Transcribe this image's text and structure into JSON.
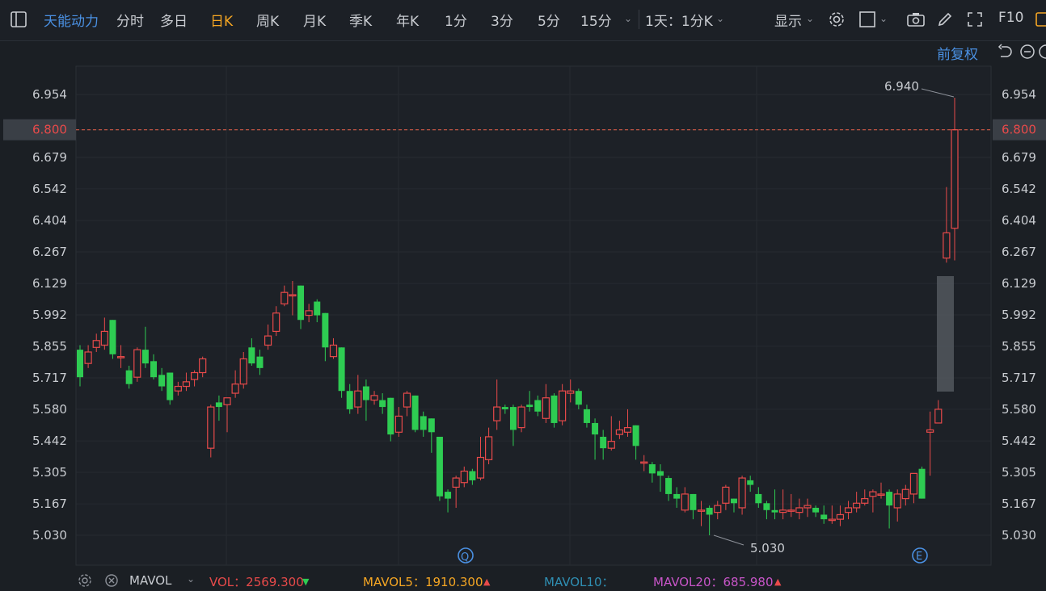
{
  "toolbar": {
    "stock_name": "天能动力",
    "tabs": [
      {
        "label": "分时",
        "active": false
      },
      {
        "label": "多日",
        "active": false
      },
      {
        "label": "日K",
        "active": true
      },
      {
        "label": "周K",
        "active": false
      },
      {
        "label": "月K",
        "active": false
      },
      {
        "label": "季K",
        "active": false
      },
      {
        "label": "年K",
        "active": false
      },
      {
        "label": "1分",
        "active": false
      },
      {
        "label": "3分",
        "active": false
      },
      {
        "label": "5分",
        "active": false
      },
      {
        "label": "15分",
        "active": false
      }
    ],
    "period_select": "1天：1分K",
    "display_label": "显示",
    "f10_label": "F10",
    "icons": [
      "sidebar-toggle-icon",
      "settings-gear-icon",
      "checkbox-icon",
      "camera-icon",
      "pencil-icon",
      "fullscreen-icon"
    ]
  },
  "subheader": {
    "adjust_label": "前复权",
    "icons": [
      "reset-icon",
      "zoom-out-icon"
    ]
  },
  "markers": {
    "q_label": "Q",
    "e_label": "E"
  },
  "volume_bar": {
    "mavol_label": "MAVOL",
    "vol_text": "VOL：2569.300",
    "mavol5_text": "MAVOL5：1910.300",
    "mavol10_text": "MAVOL10：",
    "mavol20_text": "MAVOL20：685.980",
    "colors": {
      "vol": "#e84a4a",
      "mavol5": "#f5a623",
      "mavol10": "#2f8fb3",
      "mavol20": "#c855c8"
    }
  },
  "colors": {
    "up": "#e84a4a",
    "down": "#2ecc52",
    "accent": "#f5a623",
    "link": "#4a90e2"
  },
  "chart_data": {
    "type": "candlestick",
    "y_ticks": [
      "6.954",
      "6.800",
      "6.679",
      "6.542",
      "6.404",
      "6.267",
      "6.129",
      "5.992",
      "5.855",
      "5.717",
      "5.580",
      "5.442",
      "5.305",
      "5.167",
      "5.030"
    ],
    "ylim": [
      4.98,
      7.01
    ],
    "current_price": "6.800",
    "high_annotation": "6.940",
    "low_annotation": "5.030",
    "candles": [
      [
        5.84,
        5.72,
        5.86,
        5.68
      ],
      [
        5.78,
        5.83,
        5.86,
        5.76
      ],
      [
        5.85,
        5.88,
        5.91,
        5.83
      ],
      [
        5.86,
        5.92,
        5.98,
        5.84
      ],
      [
        5.97,
        5.82,
        5.97,
        5.8
      ],
      [
        5.81,
        5.81,
        5.86,
        5.76
      ],
      [
        5.75,
        5.69,
        5.77,
        5.67
      ],
      [
        5.72,
        5.84,
        5.85,
        5.7
      ],
      [
        5.84,
        5.78,
        5.94,
        5.76
      ],
      [
        5.79,
        5.72,
        5.82,
        5.71
      ],
      [
        5.73,
        5.68,
        5.76,
        5.66
      ],
      [
        5.74,
        5.62,
        5.74,
        5.6
      ],
      [
        5.66,
        5.68,
        5.7,
        5.64
      ],
      [
        5.68,
        5.7,
        5.74,
        5.66
      ],
      [
        5.71,
        5.74,
        5.75,
        5.68
      ],
      [
        5.74,
        5.8,
        5.81,
        5.72
      ],
      [
        5.41,
        5.59,
        5.6,
        5.37
      ],
      [
        5.61,
        5.59,
        5.64,
        5.53
      ],
      [
        5.6,
        5.63,
        5.63,
        5.48
      ],
      [
        5.65,
        5.69,
        5.75,
        5.63
      ],
      [
        5.69,
        5.8,
        5.83,
        5.67
      ],
      [
        5.85,
        5.78,
        5.89,
        5.77
      ],
      [
        5.81,
        5.76,
        5.84,
        5.73
      ],
      [
        5.86,
        5.9,
        5.95,
        5.84
      ],
      [
        5.92,
        6.0,
        6.03,
        5.9
      ],
      [
        6.04,
        6.09,
        6.12,
        6.03
      ],
      [
        6.08,
        6.08,
        6.14,
        5.99
      ],
      [
        6.12,
        5.97,
        6.12,
        5.93
      ],
      [
        5.99,
        6.01,
        6.04,
        5.96
      ],
      [
        6.05,
        5.99,
        6.06,
        5.96
      ],
      [
        6.0,
        5.85,
        6.0,
        5.79
      ],
      [
        5.81,
        5.86,
        5.89,
        5.8
      ],
      [
        5.85,
        5.66,
        5.85,
        5.63
      ],
      [
        5.66,
        5.58,
        5.69,
        5.56
      ],
      [
        5.59,
        5.66,
        5.73,
        5.56
      ],
      [
        5.68,
        5.62,
        5.71,
        5.53
      ],
      [
        5.62,
        5.64,
        5.66,
        5.6
      ],
      [
        5.62,
        5.59,
        5.65,
        5.56
      ],
      [
        5.63,
        5.47,
        5.63,
        5.44
      ],
      [
        5.48,
        5.55,
        5.59,
        5.46
      ],
      [
        5.59,
        5.65,
        5.66,
        5.55
      ],
      [
        5.64,
        5.49,
        5.64,
        5.48
      ],
      [
        5.55,
        5.49,
        5.57,
        5.46
      ],
      [
        5.54,
        5.48,
        5.54,
        5.39
      ],
      [
        5.46,
        5.2,
        5.46,
        5.18
      ],
      [
        5.22,
        5.19,
        5.23,
        5.13
      ],
      [
        5.24,
        5.28,
        5.29,
        5.15
      ],
      [
        5.26,
        5.31,
        5.33,
        5.24
      ],
      [
        5.31,
        5.27,
        5.32,
        5.25
      ],
      [
        5.28,
        5.37,
        5.46,
        5.27
      ],
      [
        5.36,
        5.46,
        5.5,
        5.34
      ],
      [
        5.53,
        5.59,
        5.71,
        5.49
      ],
      [
        5.59,
        5.58,
        5.6,
        5.56
      ],
      [
        5.59,
        5.49,
        5.6,
        5.42
      ],
      [
        5.5,
        5.59,
        5.6,
        5.48
      ],
      [
        5.6,
        5.59,
        5.66,
        5.57
      ],
      [
        5.62,
        5.57,
        5.64,
        5.55
      ],
      [
        5.54,
        5.63,
        5.69,
        5.52
      ],
      [
        5.64,
        5.52,
        5.65,
        5.5
      ],
      [
        5.53,
        5.66,
        5.69,
        5.51
      ],
      [
        5.65,
        5.66,
        5.71,
        5.61
      ],
      [
        5.66,
        5.6,
        5.67,
        5.58
      ],
      [
        5.58,
        5.52,
        5.6,
        5.5
      ],
      [
        5.52,
        5.47,
        5.54,
        5.36
      ],
      [
        5.46,
        5.41,
        5.49,
        5.36
      ],
      [
        5.41,
        5.44,
        5.55,
        5.4
      ],
      [
        5.47,
        5.49,
        5.53,
        5.45
      ],
      [
        5.48,
        5.5,
        5.58,
        5.46
      ],
      [
        5.51,
        5.42,
        5.51,
        5.36
      ],
      [
        5.35,
        5.35,
        5.38,
        5.31
      ],
      [
        5.34,
        5.3,
        5.35,
        5.26
      ],
      [
        5.31,
        5.29,
        5.34,
        5.22
      ],
      [
        5.28,
        5.21,
        5.29,
        5.18
      ],
      [
        5.21,
        5.19,
        5.24,
        5.15
      ],
      [
        5.14,
        5.21,
        5.24,
        5.13
      ],
      [
        5.21,
        5.14,
        5.21,
        5.1
      ],
      [
        5.14,
        5.14,
        5.18,
        5.07
      ],
      [
        5.15,
        5.12,
        5.16,
        5.03
      ],
      [
        5.13,
        5.16,
        5.18,
        5.1
      ],
      [
        5.17,
        5.24,
        5.25,
        5.14
      ],
      [
        5.19,
        5.17,
        5.19,
        5.13
      ],
      [
        5.15,
        5.28,
        5.29,
        5.12
      ],
      [
        5.27,
        5.25,
        5.29,
        5.22
      ],
      [
        5.21,
        5.17,
        5.24,
        5.15
      ],
      [
        5.17,
        5.14,
        5.18,
        5.1
      ],
      [
        5.14,
        5.13,
        5.23,
        5.1
      ],
      [
        5.13,
        5.14,
        5.23,
        5.1
      ],
      [
        5.14,
        5.14,
        5.21,
        5.11
      ],
      [
        5.13,
        5.15,
        5.19,
        5.1
      ],
      [
        5.15,
        5.16,
        5.19,
        5.11
      ],
      [
        5.15,
        5.13,
        5.16,
        5.11
      ],
      [
        5.12,
        5.1,
        5.16,
        5.08
      ],
      [
        5.1,
        5.1,
        5.16,
        5.08
      ],
      [
        5.1,
        5.12,
        5.16,
        5.07
      ],
      [
        5.13,
        5.15,
        5.18,
        5.1
      ],
      [
        5.15,
        5.17,
        5.22,
        5.13
      ],
      [
        5.17,
        5.19,
        5.23,
        5.16
      ],
      [
        5.2,
        5.22,
        5.23,
        5.13
      ],
      [
        5.21,
        5.21,
        5.26,
        5.19
      ],
      [
        5.22,
        5.16,
        5.23,
        5.06
      ],
      [
        5.15,
        5.21,
        5.23,
        5.09
      ],
      [
        5.19,
        5.23,
        5.25,
        5.16
      ],
      [
        5.21,
        5.3,
        5.3,
        5.17
      ],
      [
        5.32,
        5.19,
        5.33,
        5.19
      ],
      [
        5.48,
        5.49,
        5.57,
        5.29
      ],
      [
        5.52,
        5.58,
        5.62,
        5.52
      ],
      [
        6.24,
        6.35,
        6.55,
        6.22
      ],
      [
        6.37,
        6.8,
        6.94,
        6.23
      ]
    ]
  }
}
